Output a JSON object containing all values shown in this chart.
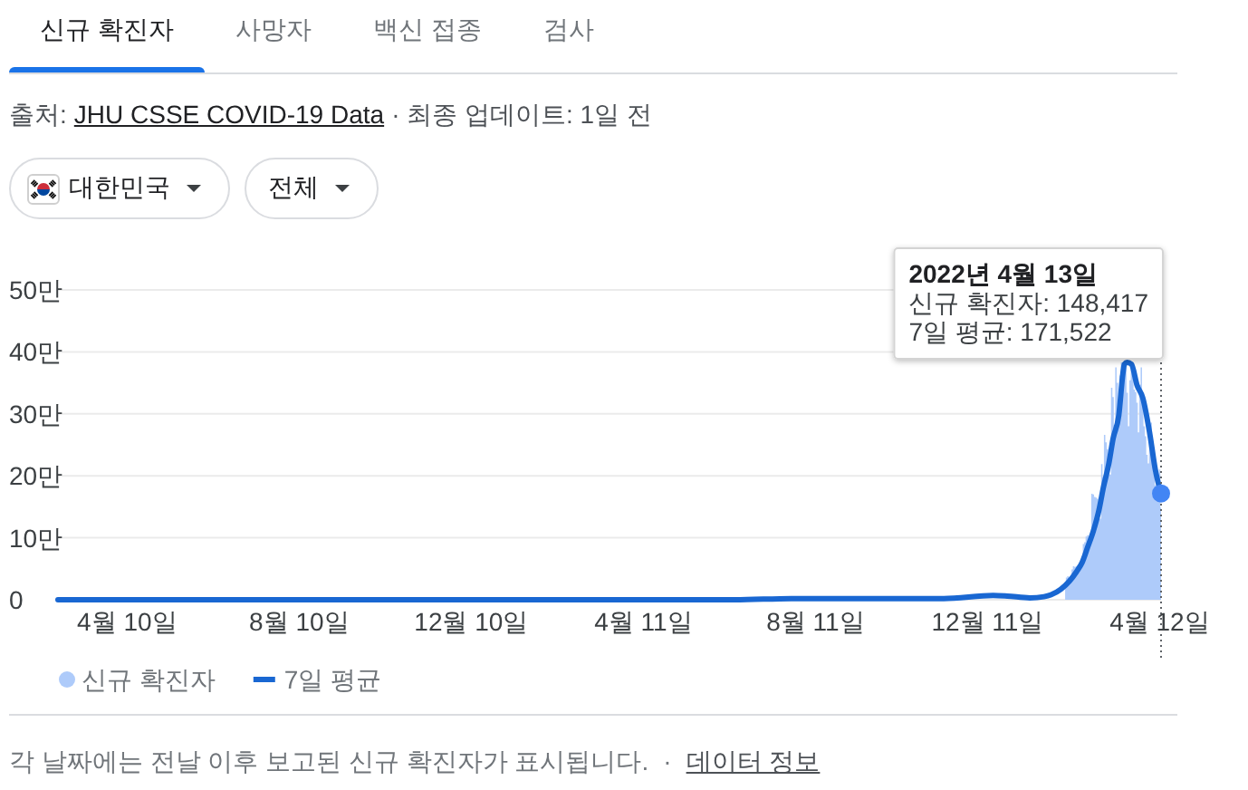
{
  "chart_data": {
    "type": "area",
    "title": "신규 확진자",
    "annotations": [
      "사망자",
      "백신 접종",
      "검사",
      "출처:",
      "JHU CSSE COVID-19 Data",
      "· 최종 업데이트: 1일 전",
      "대한민국",
      "전체",
      "2022년 4월 13일",
      "신규 확진자: 148,417",
      "7일 평균: 171,522",
      "각 날짜에는 전날 이후 보고된 신규 확진자가 표시됩니다.",
      "·",
      "데이터 정보"
    ],
    "series": [
      {
        "name": "신규 확진자",
        "color": "#aecbfa",
        "x": [
          "2022-02-04",
          "2022-02-05",
          "2022-02-06",
          "2022-02-07",
          "2022-02-08",
          "2022-02-09",
          "2022-02-10",
          "2022-02-11",
          "2022-02-12",
          "2022-02-13",
          "2022-02-14",
          "2022-02-15",
          "2022-02-16",
          "2022-02-17",
          "2022-02-18",
          "2022-02-19",
          "2022-02-20",
          "2022-02-21",
          "2022-02-22",
          "2022-02-23",
          "2022-02-24",
          "2022-02-25",
          "2022-02-26",
          "2022-02-27",
          "2022-02-28",
          "2022-03-01",
          "2022-03-02",
          "2022-03-03",
          "2022-03-04",
          "2022-03-05",
          "2022-03-06",
          "2022-03-07",
          "2022-03-08",
          "2022-03-09",
          "2022-03-10",
          "2022-03-11",
          "2022-03-12",
          "2022-03-13",
          "2022-03-14",
          "2022-03-15",
          "2022-03-16",
          "2022-03-17",
          "2022-03-18",
          "2022-03-19",
          "2022-03-20",
          "2022-03-21",
          "2022-03-22",
          "2022-03-23",
          "2022-03-24",
          "2022-03-25",
          "2022-03-26",
          "2022-03-27",
          "2022-03-28",
          "2022-03-29",
          "2022-03-30",
          "2022-03-31",
          "2022-04-01",
          "2022-04-02",
          "2022-04-03",
          "2022-04-04",
          "2022-04-05",
          "2022-04-06",
          "2022-04-07",
          "2022-04-08",
          "2022-04-09",
          "2022-04-10",
          "2022-04-11",
          "2022-04-12",
          "2022-04-13"
        ],
        "values": [
          2.7,
          3.6,
          3.8,
          3.5,
          3.7,
          4.9,
          5.4,
          5.3,
          5.4,
          5.6,
          5.3,
          5.7,
          5.7,
          9,
          9.3,
          10.2,
          10.4,
          9.5,
          9.9,
          17.1,
          17,
          16.6,
          16.5,
          16.3,
          13.9,
          13.1,
          21.9,
          19.8,
          26.6,
          25.4,
          24.3,
          21,
          20.2,
          34.2,
          32.7,
          28.2,
          37.5,
          35,
          30.9,
          36.2,
          38.3,
          38.3,
          38.3,
          37.5,
          33.4,
          28,
          35.4,
          38.3,
          38.3,
          33.9,
          33.5,
          31.8,
          27,
          34.7,
          37.5,
          32.1,
          28,
          26.4,
          23.4,
          22,
          26.6,
          28.6,
          22.4,
          20.5,
          18.5,
          16.4,
          17,
          21,
          14.8417
        ]
      },
      {
        "name": "7일 평균",
        "type": "line",
        "color": "#1967d2",
        "x": [
          "2020-02-21",
          "2021-06-15",
          "2021-07-25",
          "2021-09-25",
          "2021-11-10",
          "2021-12-15",
          "2021-12-25",
          "2022-01-10",
          "2022-01-20",
          "2022-01-25",
          "2022-02-01",
          "2022-02-07",
          "2022-02-12",
          "2022-02-16",
          "2022-02-20",
          "2022-02-24",
          "2022-02-28",
          "2022-03-03",
          "2022-03-07",
          "2022-03-10",
          "2022-03-14",
          "2022-03-17",
          "2022-03-18",
          "2022-03-20",
          "2022-03-23",
          "2022-03-27",
          "2022-03-31",
          "2022-04-05",
          "2022-04-09",
          "2022-04-13"
        ],
        "values": [
          0,
          0,
          0.2,
          0.2,
          0.2,
          0.7,
          0.6,
          0.3,
          0.5,
          0.8,
          1.7,
          3,
          4.5,
          6,
          8.5,
          11.1,
          14.5,
          18,
          22,
          26,
          29.7,
          36.6,
          38,
          38.3,
          38,
          34.6,
          32.6,
          26.8,
          20.9,
          17.1522
        ]
      },
      {
        "type": "scatter",
        "color": "#4285f4",
        "x": [
          "2022-04-13"
        ],
        "values": [
          17.1522
        ]
      }
    ],
    "xlim": [
      "2020-02-21",
      "2022-04-13"
    ],
    "xticks": [
      {
        "value": "2020-04-10",
        "label": "4월 10일"
      },
      {
        "value": "2020-08-10",
        "label": "8월 10일"
      },
      {
        "value": "2020-12-10",
        "label": "12월 10일"
      },
      {
        "value": "2021-04-11",
        "label": "4월 11일"
      },
      {
        "value": "2021-08-11",
        "label": "8월 11일"
      },
      {
        "value": "2021-12-11",
        "label": "12월 11일"
      },
      {
        "value": "2022-04-12",
        "label": "4월 12일"
      }
    ],
    "ylim": [
      0,
      50
    ],
    "yticks": [
      0,
      {
        "value": 10,
        "label": "10만"
      },
      {
        "value": 20,
        "label": "20만"
      },
      {
        "value": 30,
        "label": "30만"
      },
      {
        "value": 40,
        "label": "40만"
      },
      {
        "value": 50,
        "label": "50만"
      }
    ],
    "grid": "y",
    "legend": "bottom",
    "ref_lines": [
      {
        "axis": "x",
        "value": "2022-04-13",
        "color": "#5f6368",
        "line_style": "dotted"
      }
    ]
  }
}
